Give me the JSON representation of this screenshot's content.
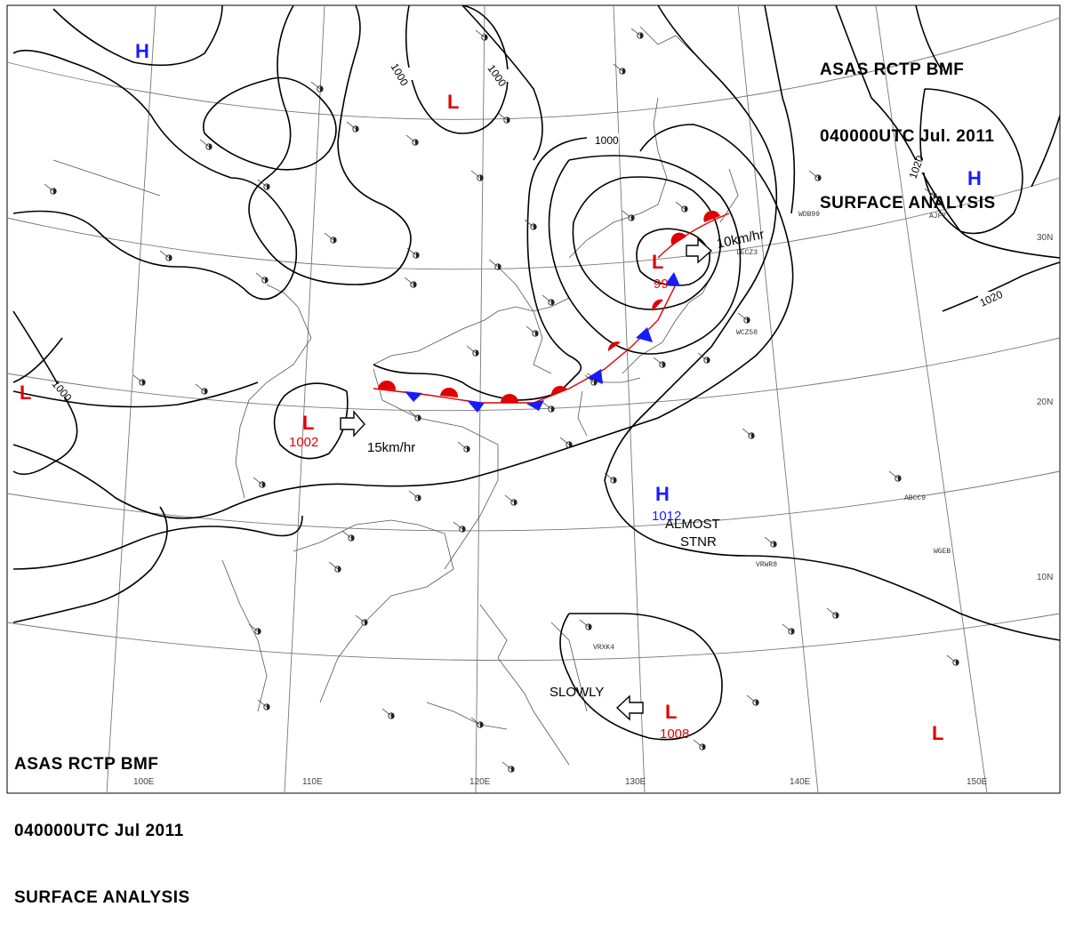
{
  "header": {
    "line1": "ASAS RCTP BMF",
    "line2": "040000UTC Jul. 2011",
    "line3": "SURFACE ANALYSIS"
  },
  "footer": {
    "line1": "ASAS RCTP BMF",
    "line2": "040000UTC Jul 2011",
    "line3": "SURFACE ANALYSIS"
  },
  "latitude_labels": [
    "30N",
    "20N",
    "10N"
  ],
  "longitude_labels": [
    "100E",
    "110E",
    "120E",
    "130E",
    "140E",
    "150E"
  ],
  "isobar_labels": [
    "1000",
    "1000",
    "1000",
    "1000",
    "1020",
    "1020"
  ],
  "pressure_systems": [
    {
      "type": "H",
      "color": "#1a1aff"
    },
    {
      "type": "H",
      "color": "#1a1aff"
    },
    {
      "type": "H",
      "color": "#1a1aff",
      "value": "1012"
    },
    {
      "type": "L",
      "color": "#e00000"
    },
    {
      "type": "L",
      "color": "#e00000"
    },
    {
      "type": "L",
      "color": "#e00000",
      "value": "1002"
    },
    {
      "type": "L",
      "color": "#e00000",
      "value": "99"
    },
    {
      "type": "L",
      "color": "#e00000",
      "value": "1008"
    },
    {
      "type": "L",
      "color": "#e00000"
    }
  ],
  "motion_labels": {
    "low_west": "15km/hr",
    "low_japan": "10km/hr",
    "high_pacific_1": "ALMOST",
    "high_pacific_2": "STNR",
    "low_philippine": "SLOWLY"
  },
  "colors": {
    "warm_front": "#e00000",
    "cold_front": "#1a1aff",
    "isobar": "#000000",
    "coastline": "#555555",
    "graticule": "#777777"
  },
  "station_codes": [
    "WDB99",
    "LECZ3",
    "WCZ58",
    "AJF7",
    "ABCC9",
    "WGEB",
    "VRWR8",
    "VRXK4"
  ]
}
